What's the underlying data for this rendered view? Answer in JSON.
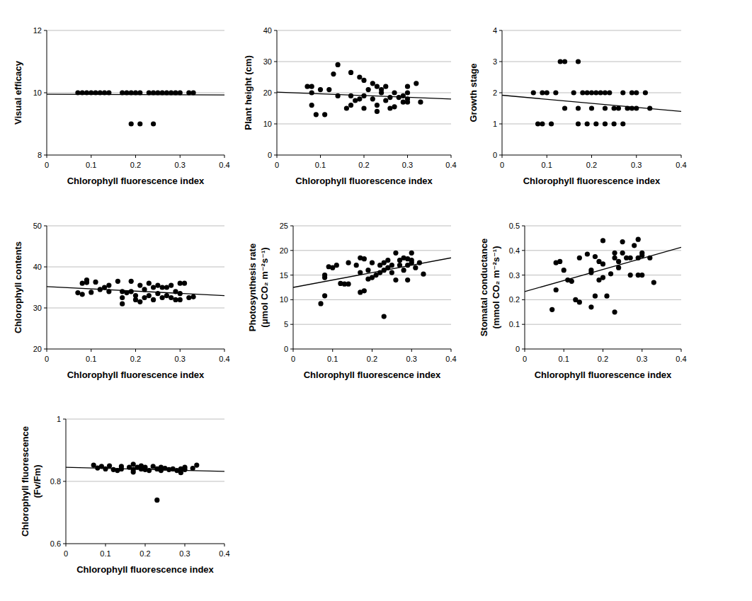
{
  "chart_data": [
    {
      "type": "scatter",
      "xlabel": "Chlorophyll fluorescence index",
      "ylabel": "Visual efficacy",
      "xlim": [
        0,
        0.4
      ],
      "xticks": [
        0,
        0.1,
        0.2,
        0.3,
        0.4
      ],
      "ylim": [
        8,
        12
      ],
      "yticks": [
        8,
        10,
        12
      ],
      "grid": true,
      "series": [
        {
          "type": "scatter",
          "marker": "circle",
          "color": "#000000",
          "x": [
            0.07,
            0.08,
            0.09,
            0.1,
            0.11,
            0.12,
            0.13,
            0.14,
            0.17,
            0.18,
            0.19,
            0.2,
            0.21,
            0.23,
            0.24,
            0.25,
            0.26,
            0.27,
            0.28,
            0.29,
            0.3,
            0.32,
            0.33,
            0.19,
            0.21,
            0.24
          ],
          "values": [
            10,
            10,
            10,
            10,
            10,
            10,
            10,
            10,
            10,
            10,
            10,
            10,
            10,
            10,
            10,
            10,
            10,
            10,
            10,
            10,
            10,
            10,
            10,
            9,
            9,
            9
          ]
        },
        {
          "type": "line",
          "color": "#000000",
          "x": [
            0,
            0.4
          ],
          "values": [
            9.95,
            9.93
          ]
        }
      ]
    },
    {
      "type": "scatter",
      "xlabel": "Chlorophyll fluorescence index",
      "ylabel": "Plant height (cm)",
      "xlim": [
        0,
        0.4
      ],
      "xticks": [
        0,
        0.1,
        0.2,
        0.3,
        0.4
      ],
      "ylim": [
        0,
        40
      ],
      "yticks": [
        0,
        10,
        20,
        30,
        40
      ],
      "grid": true,
      "series": [
        {
          "type": "scatter",
          "marker": "circle",
          "color": "#000000",
          "x": [
            0.07,
            0.08,
            0.08,
            0.08,
            0.09,
            0.1,
            0.11,
            0.12,
            0.13,
            0.14,
            0.14,
            0.16,
            0.17,
            0.17,
            0.17,
            0.18,
            0.19,
            0.19,
            0.2,
            0.2,
            0.2,
            0.21,
            0.22,
            0.22,
            0.23,
            0.23,
            0.23,
            0.24,
            0.24,
            0.25,
            0.25,
            0.26,
            0.26,
            0.27,
            0.27,
            0.28,
            0.29,
            0.29,
            0.3,
            0.3,
            0.3,
            0.3,
            0.32,
            0.33
          ],
          "values": [
            22,
            22,
            20,
            16,
            13,
            21,
            13,
            21,
            26,
            29,
            19,
            15,
            26.5,
            19,
            16,
            17.5,
            25,
            18,
            24,
            15,
            19,
            21,
            18,
            23,
            22,
            14,
            16,
            21,
            20,
            22,
            17.5,
            15,
            18.5,
            15.5,
            20,
            18.5,
            17,
            19,
            22,
            17,
            18,
            20,
            23,
            17
          ]
        },
        {
          "type": "line",
          "color": "#000000",
          "x": [
            0,
            0.4
          ],
          "values": [
            20.2,
            18
          ]
        }
      ]
    },
    {
      "type": "scatter",
      "xlabel": "Chlorophyll fluorescence index",
      "ylabel": "Growth stage",
      "xlim": [
        0,
        0.4
      ],
      "xticks": [
        0,
        0.1,
        0.2,
        0.3,
        0.4
      ],
      "ylim": [
        0,
        4
      ],
      "yticks": [
        0,
        1,
        2,
        3,
        4
      ],
      "grid": true,
      "series": [
        {
          "type": "scatter",
          "marker": "circle",
          "color": "#000000",
          "x": [
            0.07,
            0.08,
            0.09,
            0.09,
            0.1,
            0.11,
            0.12,
            0.13,
            0.14,
            0.14,
            0.16,
            0.17,
            0.17,
            0.17,
            0.18,
            0.19,
            0.19,
            0.2,
            0.2,
            0.21,
            0.21,
            0.22,
            0.23,
            0.23,
            0.23,
            0.24,
            0.25,
            0.25,
            0.26,
            0.27,
            0.27,
            0.28,
            0.29,
            0.29,
            0.3,
            0.3,
            0.32,
            0.33
          ],
          "values": [
            2,
            1,
            1,
            2,
            2,
            1,
            2,
            3,
            3,
            1.5,
            2,
            3,
            1,
            1.5,
            2,
            2,
            1,
            2,
            1.5,
            1,
            2,
            2,
            2,
            1,
            1.5,
            2,
            1.5,
            1,
            1.5,
            1,
            2,
            1.5,
            2,
            1.5,
            2,
            1.5,
            2,
            1.5
          ]
        },
        {
          "type": "line",
          "color": "#000000",
          "x": [
            0,
            0.4
          ],
          "values": [
            1.92,
            1.4
          ]
        }
      ]
    },
    {
      "type": "scatter",
      "xlabel": "Chlorophyll fluorescence index",
      "ylabel": "Chlorophyll contents",
      "xlim": [
        0,
        0.4
      ],
      "xticks": [
        0,
        0.1,
        0.2,
        0.3,
        0.4
      ],
      "ylim": [
        20,
        50
      ],
      "yticks": [
        20,
        30,
        40,
        50
      ],
      "grid": true,
      "series": [
        {
          "type": "scatter",
          "marker": "circle",
          "color": "#000000",
          "x": [
            0.07,
            0.08,
            0.08,
            0.09,
            0.09,
            0.1,
            0.11,
            0.12,
            0.13,
            0.14,
            0.14,
            0.16,
            0.17,
            0.17,
            0.17,
            0.18,
            0.19,
            0.19,
            0.2,
            0.2,
            0.21,
            0.21,
            0.22,
            0.22,
            0.23,
            0.23,
            0.24,
            0.24,
            0.25,
            0.25,
            0.26,
            0.26,
            0.27,
            0.27,
            0.28,
            0.28,
            0.29,
            0.29,
            0.3,
            0.3,
            0.3,
            0.31,
            0.32,
            0.33
          ],
          "values": [
            33.7,
            33.3,
            36,
            36.8,
            36.2,
            33.8,
            36.3,
            34.5,
            35,
            35.5,
            34,
            36.5,
            34,
            31,
            32.5,
            33.7,
            36.5,
            34,
            32,
            33,
            31.5,
            35.5,
            34.5,
            32.5,
            36,
            33,
            32,
            35,
            35.5,
            33.5,
            35,
            32.5,
            35,
            33,
            35.5,
            32.5,
            34,
            32,
            36,
            33.5,
            32,
            36,
            32.5,
            32.7
          ]
        },
        {
          "type": "line",
          "color": "#000000",
          "x": [
            0,
            0.4
          ],
          "values": [
            35.2,
            33
          ]
        }
      ]
    },
    {
      "type": "scatter",
      "xlabel": "Chlorophyll fluorescence index",
      "ylabel": "Photosynthesis rate\n(μmol CO₂ m⁻²s⁻¹)",
      "xlim": [
        0,
        0.4
      ],
      "xticks": [
        0,
        0.1,
        0.2,
        0.3,
        0.4
      ],
      "ylim": [
        0,
        25
      ],
      "yticks": [
        0,
        5,
        10,
        15,
        20,
        25
      ],
      "grid": true,
      "series": [
        {
          "type": "scatter",
          "marker": "circle",
          "color": "#000000",
          "x": [
            0.07,
            0.08,
            0.08,
            0.08,
            0.09,
            0.1,
            0.11,
            0.12,
            0.13,
            0.14,
            0.14,
            0.16,
            0.17,
            0.17,
            0.17,
            0.18,
            0.18,
            0.19,
            0.19,
            0.2,
            0.2,
            0.21,
            0.22,
            0.22,
            0.23,
            0.23,
            0.23,
            0.24,
            0.24,
            0.25,
            0.25,
            0.26,
            0.26,
            0.27,
            0.27,
            0.28,
            0.28,
            0.29,
            0.29,
            0.29,
            0.3,
            0.3,
            0.3,
            0.31,
            0.32,
            0.33
          ],
          "values": [
            9.2,
            10.8,
            14.5,
            15,
            16.7,
            16.5,
            17,
            13.3,
            13.2,
            17.5,
            13.2,
            17,
            18.5,
            15.5,
            11.5,
            18.3,
            11.8,
            14.2,
            16,
            17.5,
            14.5,
            15,
            17,
            15.5,
            6.6,
            16,
            17.5,
            18,
            16.5,
            15.5,
            17,
            19.5,
            14,
            17,
            18,
            16,
            18.5,
            17,
            14,
            18.3,
            19.5,
            17.5,
            18,
            16.5,
            17.5,
            15.2
          ]
        },
        {
          "type": "line",
          "color": "#000000",
          "x": [
            0,
            0.4
          ],
          "values": [
            12.5,
            18.5
          ]
        }
      ]
    },
    {
      "type": "scatter",
      "xlabel": "Chlorophyll fluorescence index",
      "ylabel": "Stomatal conductance\n(mmol CO₂ m⁻²s⁻¹)",
      "xlim": [
        0,
        0.4
      ],
      "xticks": [
        0,
        0.1,
        0.2,
        0.3,
        0.4
      ],
      "ylim": [
        0,
        0.5
      ],
      "yticks": [
        0,
        0.1,
        0.2,
        0.3,
        0.4,
        0.5
      ],
      "grid": true,
      "series": [
        {
          "type": "scatter",
          "marker": "circle",
          "color": "#000000",
          "x": [
            0.07,
            0.08,
            0.08,
            0.09,
            0.1,
            0.11,
            0.12,
            0.13,
            0.14,
            0.14,
            0.16,
            0.17,
            0.17,
            0.17,
            0.18,
            0.18,
            0.19,
            0.19,
            0.2,
            0.2,
            0.2,
            0.21,
            0.22,
            0.23,
            0.23,
            0.23,
            0.24,
            0.24,
            0.25,
            0.25,
            0.26,
            0.27,
            0.27,
            0.28,
            0.29,
            0.29,
            0.29,
            0.3,
            0.3,
            0.3,
            0.32,
            0.33
          ],
          "values": [
            0.16,
            0.24,
            0.35,
            0.355,
            0.32,
            0.28,
            0.275,
            0.2,
            0.19,
            0.37,
            0.385,
            0.17,
            0.31,
            0.32,
            0.375,
            0.215,
            0.28,
            0.355,
            0.44,
            0.345,
            0.29,
            0.215,
            0.305,
            0.15,
            0.37,
            0.39,
            0.33,
            0.355,
            0.435,
            0.39,
            0.37,
            0.37,
            0.3,
            0.42,
            0.445,
            0.3,
            0.37,
            0.38,
            0.39,
            0.3,
            0.37,
            0.27
          ]
        },
        {
          "type": "line",
          "color": "#000000",
          "x": [
            0,
            0.4
          ],
          "values": [
            0.233,
            0.413
          ]
        }
      ]
    },
    {
      "type": "scatter",
      "xlabel": "Chlorophyll fluorescence index",
      "ylabel": "Chlorophyll fluorescence\n(Fv/Fm)",
      "xlim": [
        0,
        0.4
      ],
      "xticks": [
        0,
        0.1,
        0.2,
        0.3,
        0.4
      ],
      "ylim": [
        0.6,
        1
      ],
      "yticks": [
        0.6,
        0.8,
        1
      ],
      "grid": true,
      "series": [
        {
          "type": "scatter",
          "marker": "circle",
          "color": "#000000",
          "x": [
            0.07,
            0.08,
            0.09,
            0.1,
            0.11,
            0.12,
            0.13,
            0.14,
            0.14,
            0.16,
            0.17,
            0.17,
            0.17,
            0.18,
            0.19,
            0.19,
            0.2,
            0.2,
            0.21,
            0.22,
            0.23,
            0.23,
            0.24,
            0.24,
            0.25,
            0.26,
            0.27,
            0.28,
            0.29,
            0.29,
            0.3,
            0.3,
            0.32,
            0.33
          ],
          "values": [
            0.852,
            0.843,
            0.848,
            0.84,
            0.85,
            0.838,
            0.835,
            0.848,
            0.84,
            0.845,
            0.855,
            0.838,
            0.83,
            0.845,
            0.84,
            0.85,
            0.838,
            0.845,
            0.835,
            0.848,
            0.74,
            0.84,
            0.845,
            0.835,
            0.842,
            0.838,
            0.84,
            0.835,
            0.828,
            0.84,
            0.838,
            0.845,
            0.842,
            0.852
          ]
        },
        {
          "type": "line",
          "color": "#000000",
          "x": [
            0,
            0.4
          ],
          "values": [
            0.845,
            0.832
          ]
        }
      ]
    }
  ]
}
